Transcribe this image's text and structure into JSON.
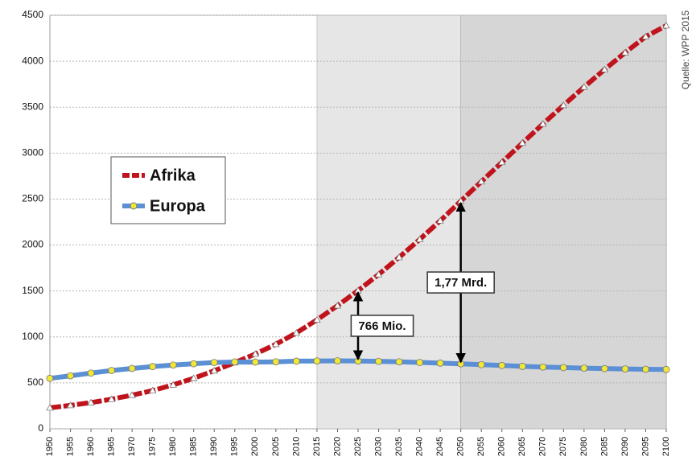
{
  "chart_data": {
    "type": "line",
    "source": "Quelle: WPP 2015",
    "x": [
      1950,
      1955,
      1960,
      1965,
      1970,
      1975,
      1980,
      1985,
      1990,
      1995,
      2000,
      2005,
      2010,
      2015,
      2020,
      2025,
      2030,
      2035,
      2040,
      2045,
      2050,
      2055,
      2060,
      2065,
      2070,
      2075,
      2080,
      2085,
      2090,
      2095,
      2100
    ],
    "xlim": [
      1950,
      2100
    ],
    "xticks": [
      1950,
      1955,
      1960,
      1965,
      1970,
      1975,
      1980,
      1985,
      1990,
      1995,
      2000,
      2005,
      2010,
      2015,
      2020,
      2025,
      2030,
      2035,
      2040,
      2045,
      2050,
      2055,
      2060,
      2065,
      2070,
      2075,
      2080,
      2085,
      2090,
      2095,
      2100
    ],
    "ylim": [
      0,
      4500
    ],
    "yticks": [
      0,
      500,
      1000,
      1500,
      2000,
      2500,
      3000,
      3500,
      4000,
      4500
    ],
    "grid": true,
    "bands": [
      {
        "from": 2015,
        "to": 2050,
        "color": "#e6e6e6"
      },
      {
        "from": 2050,
        "to": 2100,
        "color": "#d6d6d6"
      }
    ],
    "series": [
      {
        "name": "Afrika",
        "color": "#c0141c",
        "marker_color": "#ffffff",
        "values": [
          229,
          255,
          285,
          322,
          366,
          416,
          478,
          550,
          632,
          720,
          814,
          920,
          1044,
          1186,
          1340,
          1504,
          1679,
          1866,
          2061,
          2264,
          2478,
          2690,
          2900,
          3110,
          3318,
          3521,
          3719,
          3910,
          4094,
          4268,
          4387
        ]
      },
      {
        "name": "Europa",
        "color": "#5b8fd6",
        "marker_color": "#f2e636",
        "values": [
          549,
          577,
          606,
          635,
          657,
          677,
          694,
          708,
          721,
          727,
          726,
          729,
          736,
          738,
          740,
          738,
          734,
          729,
          722,
          715,
          707,
          698,
          689,
          680,
          672,
          666,
          660,
          655,
          651,
          648,
          646
        ]
      }
    ],
    "annotations": [
      {
        "label": "766 Mio.",
        "x": 2025
      },
      {
        "label": "1,77 Mrd.",
        "x": 2050
      }
    ]
  }
}
